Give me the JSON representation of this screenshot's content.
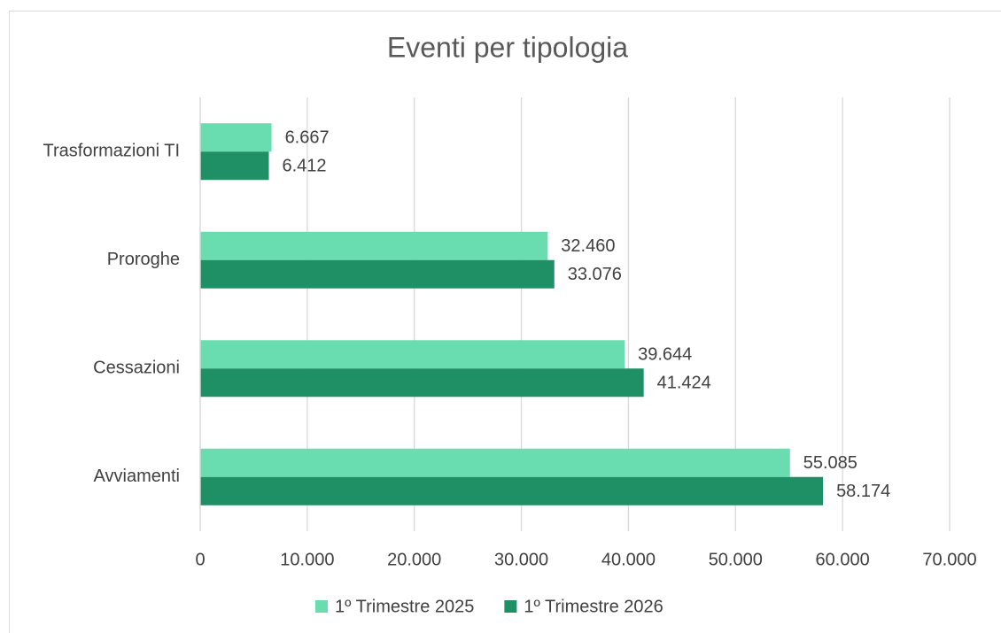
{
  "chart_data": {
    "type": "hbar",
    "title": "Eventi per tipologia",
    "categories": [
      "Trasformazioni TI",
      "Proroghe",
      "Cessazioni",
      "Avviamenti"
    ],
    "series": [
      {
        "name": "1º Trimestre 2025",
        "color": "#6addb0",
        "values": [
          6667,
          32460,
          39644,
          55085
        ],
        "value_labels": [
          "6.667",
          "32.460",
          "39.644",
          "55.085"
        ]
      },
      {
        "name": "1º Trimestre 2026",
        "color": "#1f9066",
        "values": [
          6412,
          33076,
          41424,
          58174
        ],
        "value_labels": [
          "6.412",
          "33.076",
          "41.424",
          "58.174"
        ]
      }
    ],
    "xlim": [
      0,
      70000
    ],
    "xticks": [
      0,
      {
        "value": 10000,
        "label": "10.000"
      },
      {
        "value": 20000,
        "label": "20.000"
      },
      {
        "value": 30000,
        "label": "30.000"
      },
      {
        "value": 40000,
        "label": "40.000"
      },
      {
        "value": 50000,
        "label": "50.000"
      },
      {
        "value": 60000,
        "label": "60.000"
      },
      {
        "value": 70000,
        "label": "70.000"
      }
    ],
    "grid": true,
    "legend": "bottom"
  }
}
